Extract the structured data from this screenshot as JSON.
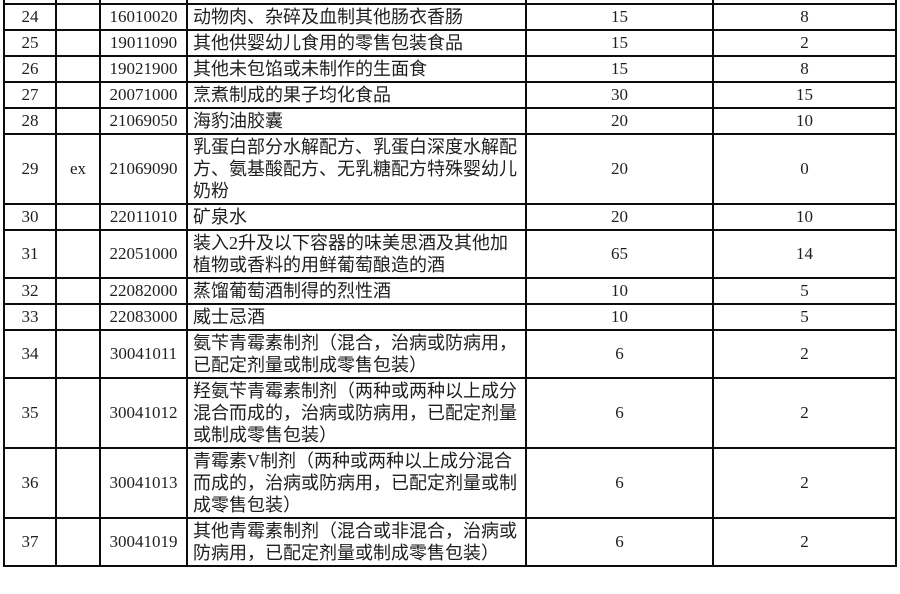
{
  "table": {
    "description": "import tariff rate table rows 24-37",
    "text_color": "#1e1e1e",
    "border_color": "#0d0d0d",
    "background_color": "#ffffff",
    "columns": [
      "row_number",
      "ex_marker",
      "hs_code",
      "description",
      "rate_current",
      "rate_new"
    ],
    "rows": [
      {
        "no": "24",
        "ex": "",
        "code": "16010020",
        "desc": "动物肉、杂碎及血制其他肠衣香肠",
        "r1": "15",
        "r2": "8"
      },
      {
        "no": "25",
        "ex": "",
        "code": "19011090",
        "desc": "其他供婴幼儿食用的零售包装食品",
        "r1": "15",
        "r2": "2"
      },
      {
        "no": "26",
        "ex": "",
        "code": "19021900",
        "desc": "其他未包馅或未制作的生面食",
        "r1": "15",
        "r2": "8"
      },
      {
        "no": "27",
        "ex": "",
        "code": "20071000",
        "desc": "烹煮制成的果子均化食品",
        "r1": "30",
        "r2": "15"
      },
      {
        "no": "28",
        "ex": "",
        "code": "21069050",
        "desc": "海豹油胶囊",
        "r1": "20",
        "r2": "10"
      },
      {
        "no": "29",
        "ex": "ex",
        "code": "21069090",
        "desc": "乳蛋白部分水解配方、乳蛋白深度水解配方、氨基酸配方、无乳糖配方特殊婴幼儿奶粉",
        "r1": "20",
        "r2": "0"
      },
      {
        "no": "30",
        "ex": "",
        "code": "22011010",
        "desc": "矿泉水",
        "r1": "20",
        "r2": "10"
      },
      {
        "no": "31",
        "ex": "",
        "code": "22051000",
        "desc": "装入2升及以下容器的味美思酒及其他加植物或香料的用鲜葡萄酿造的酒",
        "r1": "65",
        "r2": "14"
      },
      {
        "no": "32",
        "ex": "",
        "code": "22082000",
        "desc": "蒸馏葡萄酒制得的烈性酒",
        "r1": "10",
        "r2": "5"
      },
      {
        "no": "33",
        "ex": "",
        "code": "22083000",
        "desc": "威士忌酒",
        "r1": "10",
        "r2": "5"
      },
      {
        "no": "34",
        "ex": "",
        "code": "30041011",
        "desc": "氨苄青霉素制剂（混合，治病或防病用，已配定剂量或制成零售包装）",
        "r1": "6",
        "r2": "2"
      },
      {
        "no": "35",
        "ex": "",
        "code": "30041012",
        "desc": "羟氨苄青霉素制剂（两种或两种以上成分混合而成的，治病或防病用，已配定剂量或制成零售包装）",
        "r1": "6",
        "r2": "2"
      },
      {
        "no": "36",
        "ex": "",
        "code": "30041013",
        "desc": "青霉素V制剂（两种或两种以上成分混合而成的，治病或防病用，已配定剂量或制成零售包装）",
        "r1": "6",
        "r2": "2"
      },
      {
        "no": "37",
        "ex": "",
        "code": "30041019",
        "desc": "其他青霉素制剂（混合或非混合，治病或防病用，已配定剂量或制成零售包装）",
        "r1": "6",
        "r2": "2"
      }
    ]
  }
}
